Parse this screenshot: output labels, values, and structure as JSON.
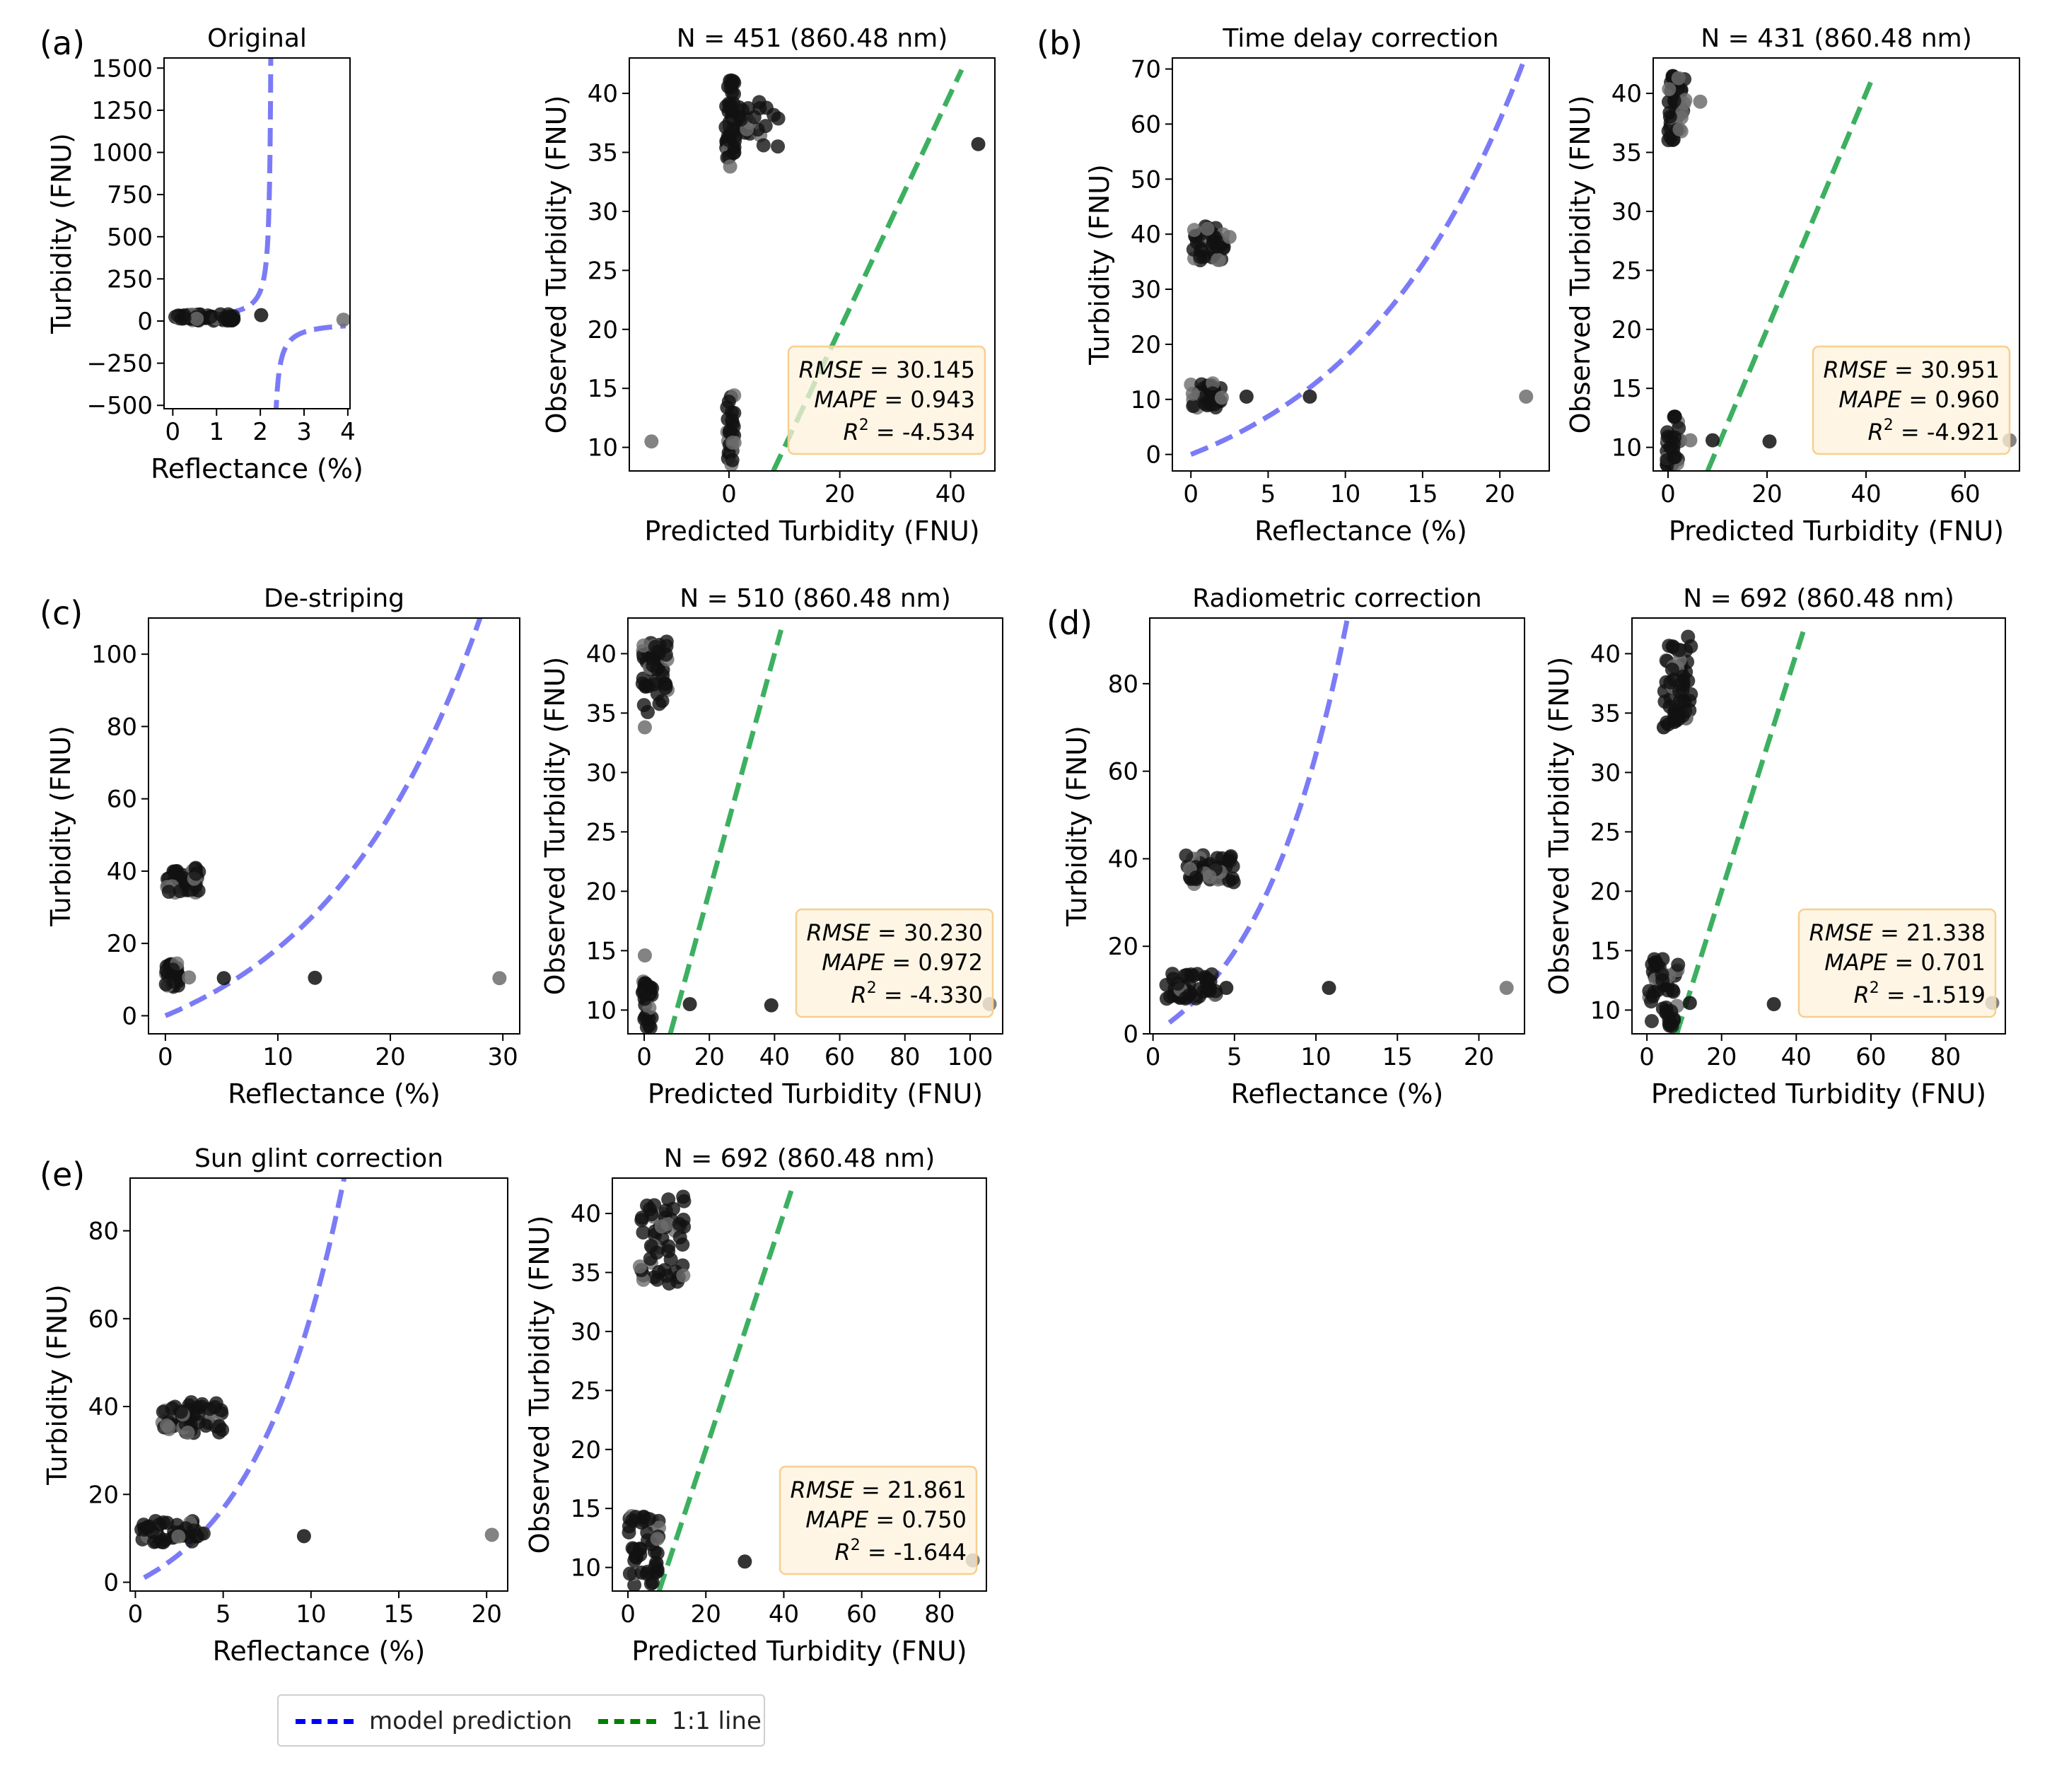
{
  "chart_data": [
    {
      "id": "a-model",
      "panel_label": "(a)",
      "type": "scatter",
      "title": "Original",
      "xlabel": "Reflectance (%)",
      "ylabel": "Turbidity (FNU)",
      "xlim": [
        -0.2,
        4.05
      ],
      "ylim": [
        -520,
        1560
      ],
      "xticks": [
        0,
        1,
        2,
        3,
        4
      ],
      "xtick_labels": [
        "0",
        "1",
        "2",
        "3",
        "4"
      ],
      "yticks": [
        -500,
        -250,
        0,
        250,
        500,
        750,
        1000,
        1250,
        1500
      ],
      "ytick_labels": [
        "−500",
        "−250",
        "0",
        "250",
        "500",
        "750",
        "1000",
        "1250",
        "1500"
      ],
      "model_curve": {
        "pole": 2.27,
        "k": 48,
        "c": 0
      },
      "clusters": [
        {
          "x": [
            0.05,
            1.4
          ],
          "y": [
            2,
            40
          ],
          "n": 60
        }
      ],
      "points": [
        {
          "x": 2.02,
          "y": 35,
          "shade": "dark"
        },
        {
          "x": 3.9,
          "y": 8,
          "shade": "gray"
        }
      ]
    },
    {
      "id": "a-pred",
      "type": "scatter",
      "title": "N = 451 (860.48 nm)",
      "xlabel": "Predicted Turbidity (FNU)",
      "ylabel": "Observed Turbidity (FNU)",
      "xlim": [
        -18,
        48
      ],
      "ylim": [
        8,
        43
      ],
      "xticks": [
        0,
        20,
        40
      ],
      "xtick_labels": [
        "0",
        "20",
        "40"
      ],
      "yticks": [
        10,
        15,
        20,
        25,
        30,
        35,
        40
      ],
      "ytick_labels": [
        "10",
        "15",
        "20",
        "25",
        "30",
        "35",
        "40"
      ],
      "one_to_one": [
        8,
        42
      ],
      "clusters": [
        {
          "x": [
            -0.6,
            1.0
          ],
          "y": [
            34,
            41.5
          ],
          "n": 40
        },
        {
          "x": [
            0.5,
            9.0
          ],
          "y": [
            35.5,
            39.5
          ],
          "n": 28
        },
        {
          "x": [
            -0.5,
            1.0
          ],
          "y": [
            8.5,
            14.5
          ],
          "n": 28
        }
      ],
      "points": [
        {
          "x": 45,
          "y": 35.7,
          "shade": "dark"
        },
        {
          "x": -14,
          "y": 10.5,
          "shade": "gray"
        },
        {
          "x": 0.2,
          "y": 33.8,
          "shade": "gray"
        }
      ],
      "stats": {
        "rmse": "30.145",
        "mape": "0.943",
        "r2": "-4.534"
      }
    },
    {
      "id": "b-model",
      "panel_label": "(b)",
      "type": "scatter",
      "title": "Time delay correction",
      "xlabel": "Reflectance (%)",
      "ylabel": "Turbidity (FNU)",
      "xlim": [
        -1.2,
        23.2
      ],
      "ylim": [
        -3,
        72
      ],
      "xticks": [
        0,
        5,
        10,
        15,
        20
      ],
      "xtick_labels": [
        "0",
        "5",
        "10",
        "15",
        "20"
      ],
      "yticks": [
        0,
        10,
        20,
        30,
        40,
        50,
        60,
        70
      ],
      "ytick_labels": [
        "0",
        "10",
        "20",
        "30",
        "40",
        "50",
        "60",
        "70"
      ],
      "model_curve": {
        "x0": 0,
        "x1": 22,
        "a": 1.1,
        "b": 0.0887
      },
      "clusters": [
        {
          "x": [
            0,
            2.2
          ],
          "y": [
            35,
            41.5
          ],
          "n": 45
        },
        {
          "x": [
            0,
            2.2
          ],
          "y": [
            8.5,
            13
          ],
          "n": 30
        }
      ],
      "points": [
        {
          "x": 2.0,
          "y": 10.3,
          "shade": "gray"
        },
        {
          "x": 3.6,
          "y": 10.5,
          "shade": "dark"
        },
        {
          "x": 7.7,
          "y": 10.5,
          "shade": "dark"
        },
        {
          "x": 21.7,
          "y": 10.5,
          "shade": "gray"
        },
        {
          "x": 2.5,
          "y": 39.5,
          "shade": "gray"
        }
      ],
      "stats": null
    },
    {
      "id": "b-pred",
      "type": "scatter",
      "title": "N = 431 (860.48 nm)",
      "xlabel": "Predicted Turbidity (FNU)",
      "ylabel": "Observed Turbidity (FNU)",
      "xlim": [
        -3,
        71
      ],
      "ylim": [
        8,
        43
      ],
      "xticks": [
        0,
        20,
        40,
        60
      ],
      "xtick_labels": [
        "0",
        "20",
        "40",
        "60"
      ],
      "yticks": [
        10,
        15,
        20,
        25,
        30,
        35,
        40
      ],
      "ytick_labels": [
        "10",
        "15",
        "20",
        "25",
        "30",
        "35",
        "40"
      ],
      "one_to_one": [
        8,
        41.5
      ],
      "clusters": [
        {
          "x": [
            0,
            3.5
          ],
          "y": [
            35.5,
            41.5
          ],
          "n": 45
        },
        {
          "x": [
            -0.3,
            2.5
          ],
          "y": [
            8.5,
            12.8
          ],
          "n": 30
        }
      ],
      "points": [
        {
          "x": 4.5,
          "y": 10.6,
          "shade": "gray"
        },
        {
          "x": 9.0,
          "y": 10.6,
          "shade": "dark"
        },
        {
          "x": 20.5,
          "y": 10.5,
          "shade": "dark"
        },
        {
          "x": 69,
          "y": 10.6,
          "shade": "gray"
        },
        {
          "x": 6.5,
          "y": 39.3,
          "shade": "gray"
        }
      ],
      "stats": {
        "rmse": "30.951",
        "mape": "0.960",
        "r2": "-4.921"
      }
    },
    {
      "id": "c-model",
      "panel_label": "(c)",
      "type": "scatter",
      "title": "De-striping",
      "xlabel": "Reflectance (%)",
      "ylabel": "Turbidity (FNU)",
      "xlim": [
        -1.5,
        31.5
      ],
      "ylim": [
        -5,
        110
      ],
      "xticks": [
        0,
        10,
        20,
        30
      ],
      "xtick_labels": [
        "0",
        "10",
        "20",
        "30"
      ],
      "yticks": [
        0,
        20,
        40,
        60,
        80,
        100
      ],
      "ytick_labels": [
        "0",
        "20",
        "40",
        "60",
        "80",
        "100"
      ],
      "model_curve": {
        "x0": 0,
        "x1": 30,
        "a": 1.3,
        "b": 0.0685
      },
      "clusters": [
        {
          "x": [
            0,
            3.0
          ],
          "y": [
            34,
            41
          ],
          "n": 45
        },
        {
          "x": [
            0,
            1.2
          ],
          "y": [
            8,
            15
          ],
          "n": 25
        }
      ],
      "points": [
        {
          "x": 2.1,
          "y": 10.6,
          "shade": "gray"
        },
        {
          "x": 5.2,
          "y": 10.4,
          "shade": "dark"
        },
        {
          "x": 13.3,
          "y": 10.5,
          "shade": "dark"
        },
        {
          "x": 29.7,
          "y": 10.4,
          "shade": "gray"
        }
      ],
      "stats": null
    },
    {
      "id": "c-pred",
      "type": "scatter",
      "title": "N = 510 (860.48 nm)",
      "xlabel": "Predicted Turbidity (FNU)",
      "ylabel": "Observed Turbidity (FNU)",
      "xlim": [
        -5,
        110
      ],
      "ylim": [
        8,
        43
      ],
      "xticks": [
        0,
        20,
        40,
        60,
        80,
        100
      ],
      "xtick_labels": [
        "0",
        "20",
        "40",
        "60",
        "80",
        "100"
      ],
      "yticks": [
        10,
        15,
        20,
        25,
        30,
        35,
        40
      ],
      "ytick_labels": [
        "10",
        "15",
        "20",
        "25",
        "30",
        "35",
        "40"
      ],
      "one_to_one": [
        8,
        42
      ],
      "clusters": [
        {
          "x": [
            -0.5,
            8.0
          ],
          "y": [
            35,
            41.5
          ],
          "n": 45
        },
        {
          "x": [
            -0.5,
            2.5
          ],
          "y": [
            8.5,
            13
          ],
          "n": 30
        }
      ],
      "points": [
        {
          "x": 0.2,
          "y": 14.6,
          "shade": "gray"
        },
        {
          "x": 0.2,
          "y": 33.8,
          "shade": "gray"
        },
        {
          "x": 14,
          "y": 10.5,
          "shade": "dark"
        },
        {
          "x": 39,
          "y": 10.4,
          "shade": "dark"
        },
        {
          "x": 106,
          "y": 10.5,
          "shade": "gray"
        }
      ],
      "stats": {
        "rmse": "30.230",
        "mape": "0.972",
        "r2": "-4.330"
      }
    },
    {
      "id": "d-model",
      "panel_label": "(d)",
      "type": "scatter",
      "title": "Radiometric correction",
      "xlabel": "Reflectance (%)",
      "ylabel": "Turbidity (FNU)",
      "xlim": [
        -0.2,
        22.8
      ],
      "ylim": [
        0,
        95
      ],
      "xticks": [
        0,
        5,
        10,
        15,
        20
      ],
      "xtick_labels": [
        "0",
        "5",
        "10",
        "15",
        "20"
      ],
      "yticks": [
        0,
        20,
        40,
        60,
        80
      ],
      "ytick_labels": [
        "0",
        "20",
        "40",
        "60",
        "80"
      ],
      "model_curve": {
        "x0": 1,
        "x1": 22,
        "a": 2.35,
        "b": 0.175
      },
      "clusters": [
        {
          "x": [
            2.0,
            5.0
          ],
          "y": [
            34,
            41
          ],
          "n": 50
        },
        {
          "x": [
            0.8,
            4.2
          ],
          "y": [
            8,
            14
          ],
          "n": 45
        }
      ],
      "points": [
        {
          "x": 4.5,
          "y": 10.5,
          "shade": "dark"
        },
        {
          "x": 10.8,
          "y": 10.5,
          "shade": "dark"
        },
        {
          "x": 21.7,
          "y": 10.5,
          "shade": "gray"
        }
      ],
      "stats": null
    },
    {
      "id": "d-pred",
      "type": "scatter",
      "title": "N = 692 (860.48 nm)",
      "xlabel": "Predicted Turbidity (FNU)",
      "ylabel": "Observed Turbidity (FNU)",
      "xlim": [
        -4,
        96
      ],
      "ylim": [
        8,
        43
      ],
      "xticks": [
        0,
        20,
        40,
        60,
        80
      ],
      "xtick_labels": [
        "0",
        "20",
        "40",
        "60",
        "80"
      ],
      "yticks": [
        10,
        15,
        20,
        25,
        30,
        35,
        40
      ],
      "ytick_labels": [
        "10",
        "15",
        "20",
        "25",
        "30",
        "35",
        "40"
      ],
      "one_to_one": [
        8,
        42
      ],
      "clusters": [
        {
          "x": [
            4,
            12
          ],
          "y": [
            34,
            41.5
          ],
          "n": 55
        },
        {
          "x": [
            0.5,
            8.5
          ],
          "y": [
            8.5,
            14.5
          ],
          "n": 45
        }
      ],
      "points": [
        {
          "x": 11.5,
          "y": 10.6,
          "shade": "dark"
        },
        {
          "x": 34,
          "y": 10.5,
          "shade": "dark"
        },
        {
          "x": 92.5,
          "y": 10.6,
          "shade": "gray"
        },
        {
          "x": 4.5,
          "y": 33.8,
          "shade": "dark"
        }
      ],
      "stats": {
        "rmse": "21.338",
        "mape": "0.701",
        "r2": "-1.519"
      }
    },
    {
      "id": "e-model",
      "panel_label": "(e)",
      "type": "scatter",
      "title": "Sun glint correction",
      "xlabel": "Reflectance (%)",
      "ylabel": "Turbidity (FNU)",
      "xlim": [
        -0.3,
        21.2
      ],
      "ylim": [
        -2,
        92
      ],
      "xticks": [
        0,
        5,
        10,
        15,
        20
      ],
      "xtick_labels": [
        "0",
        "5",
        "10",
        "15",
        "20"
      ],
      "yticks": [
        0,
        20,
        40,
        60,
        80
      ],
      "ytick_labels": [
        "0",
        "20",
        "40",
        "60",
        "80"
      ],
      "model_curve": {
        "x0": 0.5,
        "x1": 20.4,
        "a": 2.0,
        "b": 0.1925
      },
      "clusters": [
        {
          "x": [
            1.5,
            5.0
          ],
          "y": [
            34,
            41
          ],
          "n": 55
        },
        {
          "x": [
            0.3,
            4.0
          ],
          "y": [
            9,
            14
          ],
          "n": 45
        }
      ],
      "points": [
        {
          "x": 9.6,
          "y": 10.5,
          "shade": "dark"
        },
        {
          "x": 20.3,
          "y": 10.8,
          "shade": "gray"
        }
      ],
      "stats": null
    },
    {
      "id": "e-pred",
      "type": "scatter",
      "title": "N = 692 (860.48 nm)",
      "xlabel": "Predicted Turbidity (FNU)",
      "ylabel": "Observed Turbidity (FNU)",
      "xlim": [
        -4,
        92
      ],
      "ylim": [
        8,
        43
      ],
      "xticks": [
        0,
        20,
        40,
        60,
        80
      ],
      "xtick_labels": [
        "0",
        "20",
        "40",
        "60",
        "80"
      ],
      "yticks": [
        10,
        15,
        20,
        25,
        30,
        35,
        40
      ],
      "ytick_labels": [
        "10",
        "15",
        "20",
        "25",
        "30",
        "35",
        "40"
      ],
      "one_to_one": [
        8,
        42
      ],
      "clusters": [
        {
          "x": [
            3,
            15
          ],
          "y": [
            34,
            41.5
          ],
          "n": 55
        },
        {
          "x": [
            0,
            8.0
          ],
          "y": [
            8.5,
            14.5
          ],
          "n": 45
        }
      ],
      "points": [
        {
          "x": 30,
          "y": 10.5,
          "shade": "dark"
        },
        {
          "x": 88.5,
          "y": 10.6,
          "shade": "gray"
        }
      ],
      "stats": {
        "rmse": "21.861",
        "mape": "0.750",
        "r2": "-1.644"
      }
    }
  ],
  "legend": {
    "model_label": "model prediction",
    "model_color": "#0000ff",
    "line_label": "1:1 line",
    "line_color": "#008000"
  },
  "stat_labels": {
    "rmse": "RMSE",
    "mape": "MAPE",
    "r": "R",
    "sup": "2"
  },
  "colors": {
    "model_curve": "#7b7bf7",
    "one_to_one": "#3cb060",
    "point_dark": "#111111",
    "point_gray": "#6d6d6d",
    "stats_face": "#fdf1dc",
    "stats_edge": "#f6cf8f"
  }
}
